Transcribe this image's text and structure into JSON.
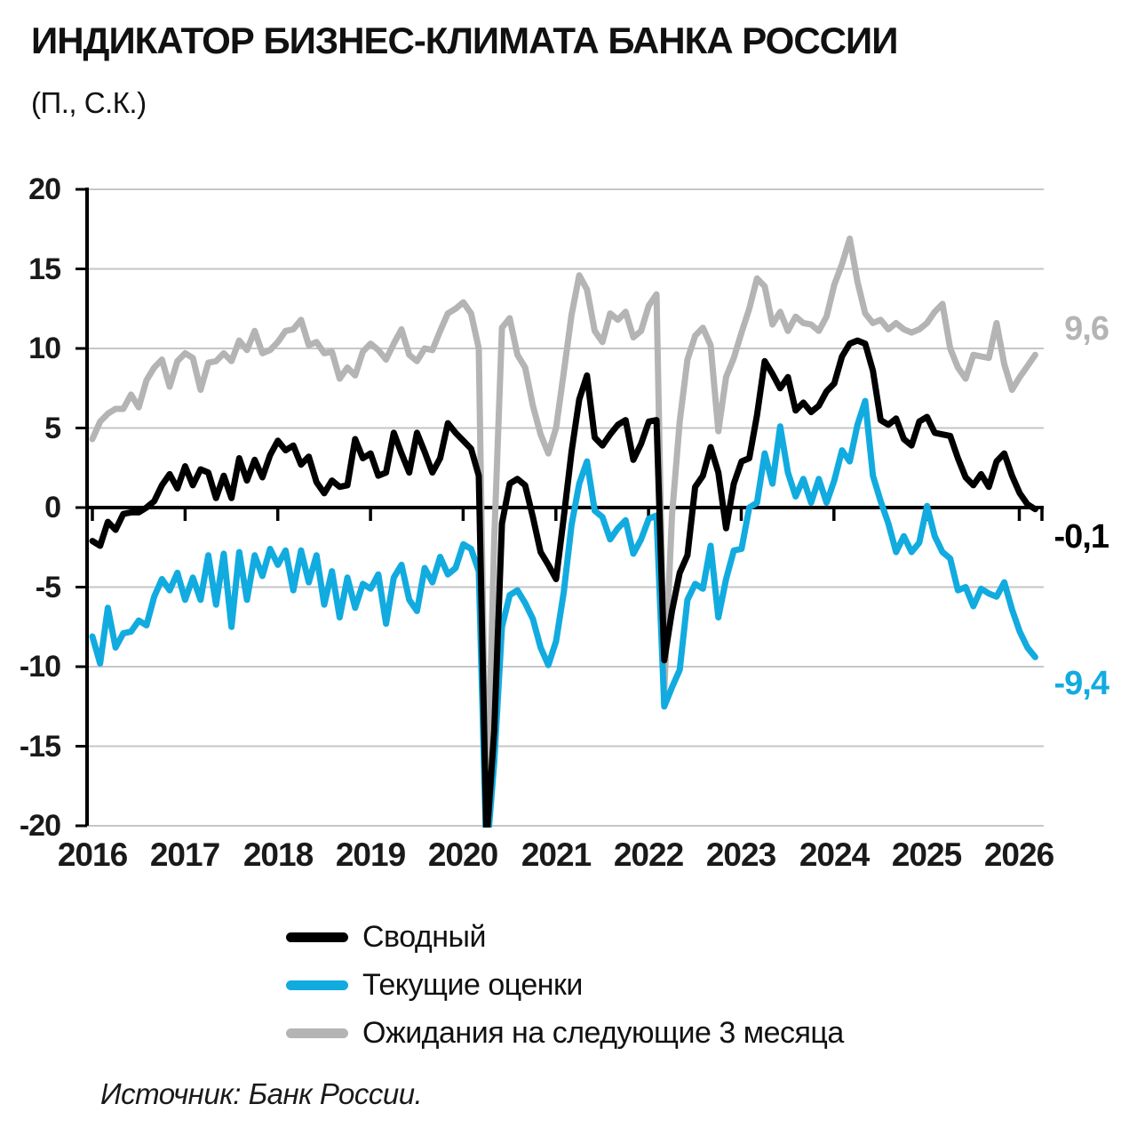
{
  "title": "ИНДИКАТОР БИЗНЕС-КЛИМАТА БАНКА РОССИИ",
  "subtitle": "(П., С.К.)",
  "source": "Источник: Банк России.",
  "colors": {
    "composite": "#000000",
    "current": "#12ABE0",
    "expectations": "#B4B4B4",
    "grid": "#C6C6C6",
    "axis": "#000000"
  },
  "end_labels": {
    "expectations": "9,6",
    "composite": "-0,1",
    "current": "-9,4"
  },
  "legend": [
    {
      "key": "composite",
      "label": "Сводный"
    },
    {
      "key": "current",
      "label": "Текущие оценки"
    },
    {
      "key": "expectations",
      "label": "Ожидания на следующие 3 месяца"
    }
  ],
  "chart_data": {
    "type": "line",
    "title": "Индикатор бизнес-климата Банка России",
    "units": "пункты, сезонно скорректировано",
    "frequency": "monthly",
    "x_start": "2016-01",
    "x_end": "2026-03",
    "x_tick_labels": [
      "2016",
      "2017",
      "2018",
      "2019",
      "2020",
      "2021",
      "2022",
      "2023",
      "2024",
      "2025",
      "2026"
    ],
    "y_ticks": [
      20,
      15,
      10,
      5,
      0,
      -5,
      -10,
      -15,
      -20
    ],
    "y_tick_labels": [
      "20",
      "15",
      "10",
      "5",
      "0",
      "-5",
      "-10",
      "-15",
      "-20"
    ],
    "ylim": [
      -20,
      20
    ],
    "grid": true,
    "legend_position": "bottom",
    "series": [
      {
        "id": "expectations",
        "name": "Ожидания на следующие 3 месяца",
        "color": "#B4B4B4",
        "end_value": 9.6,
        "values": [
          4.3,
          5.4,
          5.9,
          6.2,
          6.2,
          7.1,
          6.3,
          8.0,
          8.8,
          9.3,
          7.6,
          9.2,
          9.7,
          9.4,
          7.4,
          9.1,
          9.2,
          9.7,
          9.2,
          10.5,
          9.9,
          11.1,
          9.7,
          9.9,
          10.4,
          11.1,
          11.2,
          11.8,
          10.2,
          10.4,
          9.7,
          9.8,
          8.1,
          8.8,
          8.3,
          9.8,
          10.3,
          9.9,
          9.3,
          10.3,
          11.2,
          9.6,
          9.2,
          10.0,
          9.9,
          11.1,
          12.2,
          12.5,
          12.9,
          12.2,
          10.0,
          -20.5,
          -2.0,
          11.3,
          11.9,
          9.6,
          8.8,
          6.4,
          4.6,
          3.4,
          5.0,
          8.5,
          12.1,
          14.6,
          13.7,
          11.1,
          10.4,
          12.2,
          11.8,
          12.3,
          10.7,
          11.1,
          12.7,
          13.4,
          -11.5,
          -0.5,
          5.4,
          9.3,
          10.8,
          11.3,
          10.2,
          4.8,
          8.2,
          9.4,
          11.0,
          12.5,
          14.4,
          13.9,
          11.5,
          12.3,
          11.1,
          12.0,
          11.6,
          11.5,
          11.1,
          12.0,
          14.0,
          15.3,
          16.9,
          14.2,
          12.2,
          11.6,
          11.8,
          11.2,
          11.6,
          11.2,
          11.0,
          11.2,
          11.6,
          12.3,
          12.8,
          10.0,
          8.8,
          8.1,
          9.6,
          9.5,
          9.4,
          11.6,
          9.0,
          7.4,
          8.2,
          8.9,
          9.6
        ]
      },
      {
        "id": "current",
        "name": "Текущие оценки",
        "color": "#12ABE0",
        "end_value": -9.4,
        "values": [
          -8.1,
          -9.8,
          -6.3,
          -8.8,
          -7.9,
          -7.8,
          -7.1,
          -7.4,
          -5.6,
          -4.5,
          -5.2,
          -4.1,
          -5.8,
          -4.4,
          -5.8,
          -3.0,
          -6.1,
          -2.9,
          -7.5,
          -2.8,
          -5.8,
          -3.0,
          -4.3,
          -2.6,
          -3.6,
          -2.7,
          -5.2,
          -2.7,
          -4.7,
          -3.0,
          -6.1,
          -4.0,
          -6.9,
          -4.4,
          -6.3,
          -4.8,
          -5.1,
          -4.2,
          -7.3,
          -4.4,
          -3.6,
          -5.8,
          -6.5,
          -3.8,
          -4.7,
          -3.1,
          -4.2,
          -3.8,
          -2.3,
          -2.6,
          -4.0,
          -22.0,
          -16.0,
          -7.5,
          -5.5,
          -5.2,
          -6.0,
          -7.0,
          -8.8,
          -9.9,
          -8.4,
          -5.3,
          -1.1,
          1.5,
          2.9,
          -0.2,
          -0.6,
          -2.0,
          -1.3,
          -0.8,
          -2.9,
          -2.0,
          -0.7,
          -0.5,
          -12.5,
          -11.3,
          -10.2,
          -5.8,
          -4.8,
          -5.1,
          -2.4,
          -6.9,
          -4.5,
          -2.7,
          -2.6,
          0.0,
          0.3,
          3.4,
          1.5,
          5.1,
          2.2,
          0.7,
          1.8,
          0.3,
          1.8,
          0.3,
          1.7,
          3.6,
          2.9,
          5.2,
          6.7,
          2.0,
          0.4,
          -1.0,
          -2.8,
          -1.8,
          -2.8,
          -2.2,
          0.1,
          -1.8,
          -2.8,
          -3.2,
          -5.2,
          -5.0,
          -6.2,
          -5.1,
          -5.4,
          -5.6,
          -4.7,
          -6.4,
          -7.8,
          -8.8,
          -9.4
        ]
      },
      {
        "id": "composite",
        "name": "Сводный",
        "color": "#000000",
        "end_value": -0.1,
        "values": [
          -2.1,
          -2.4,
          -0.9,
          -1.4,
          -0.4,
          -0.3,
          -0.3,
          0.0,
          0.4,
          1.4,
          2.1,
          1.2,
          2.6,
          1.4,
          2.4,
          2.2,
          0.6,
          2.0,
          0.6,
          3.1,
          1.7,
          3.0,
          1.9,
          3.3,
          4.2,
          3.6,
          3.9,
          2.7,
          3.2,
          1.6,
          0.9,
          1.7,
          1.3,
          1.4,
          4.3,
          3.1,
          3.4,
          2.0,
          2.2,
          4.7,
          3.4,
          2.2,
          4.7,
          3.5,
          2.2,
          3.1,
          5.3,
          4.7,
          4.2,
          3.7,
          2.0,
          -21.0,
          -14.0,
          -1.0,
          1.5,
          1.8,
          1.4,
          -0.6,
          -2.8,
          -3.6,
          -4.5,
          -0.6,
          3.5,
          6.8,
          8.3,
          4.4,
          3.9,
          4.6,
          5.2,
          5.5,
          3.0,
          4.0,
          5.4,
          5.5,
          -9.6,
          -6.5,
          -4.1,
          -3.0,
          1.3,
          2.0,
          3.8,
          2.2,
          -1.3,
          1.5,
          2.9,
          3.1,
          5.8,
          9.2,
          8.4,
          7.5,
          8.2,
          6.1,
          6.6,
          6.0,
          6.4,
          7.3,
          7.8,
          9.5,
          10.3,
          10.5,
          10.3,
          8.6,
          5.5,
          5.2,
          5.6,
          4.3,
          3.9,
          5.4,
          5.7,
          4.7,
          4.6,
          4.5,
          3.1,
          1.9,
          1.4,
          2.1,
          1.3,
          2.9,
          3.4,
          2.0,
          0.9,
          0.2,
          -0.1
        ]
      }
    ]
  }
}
